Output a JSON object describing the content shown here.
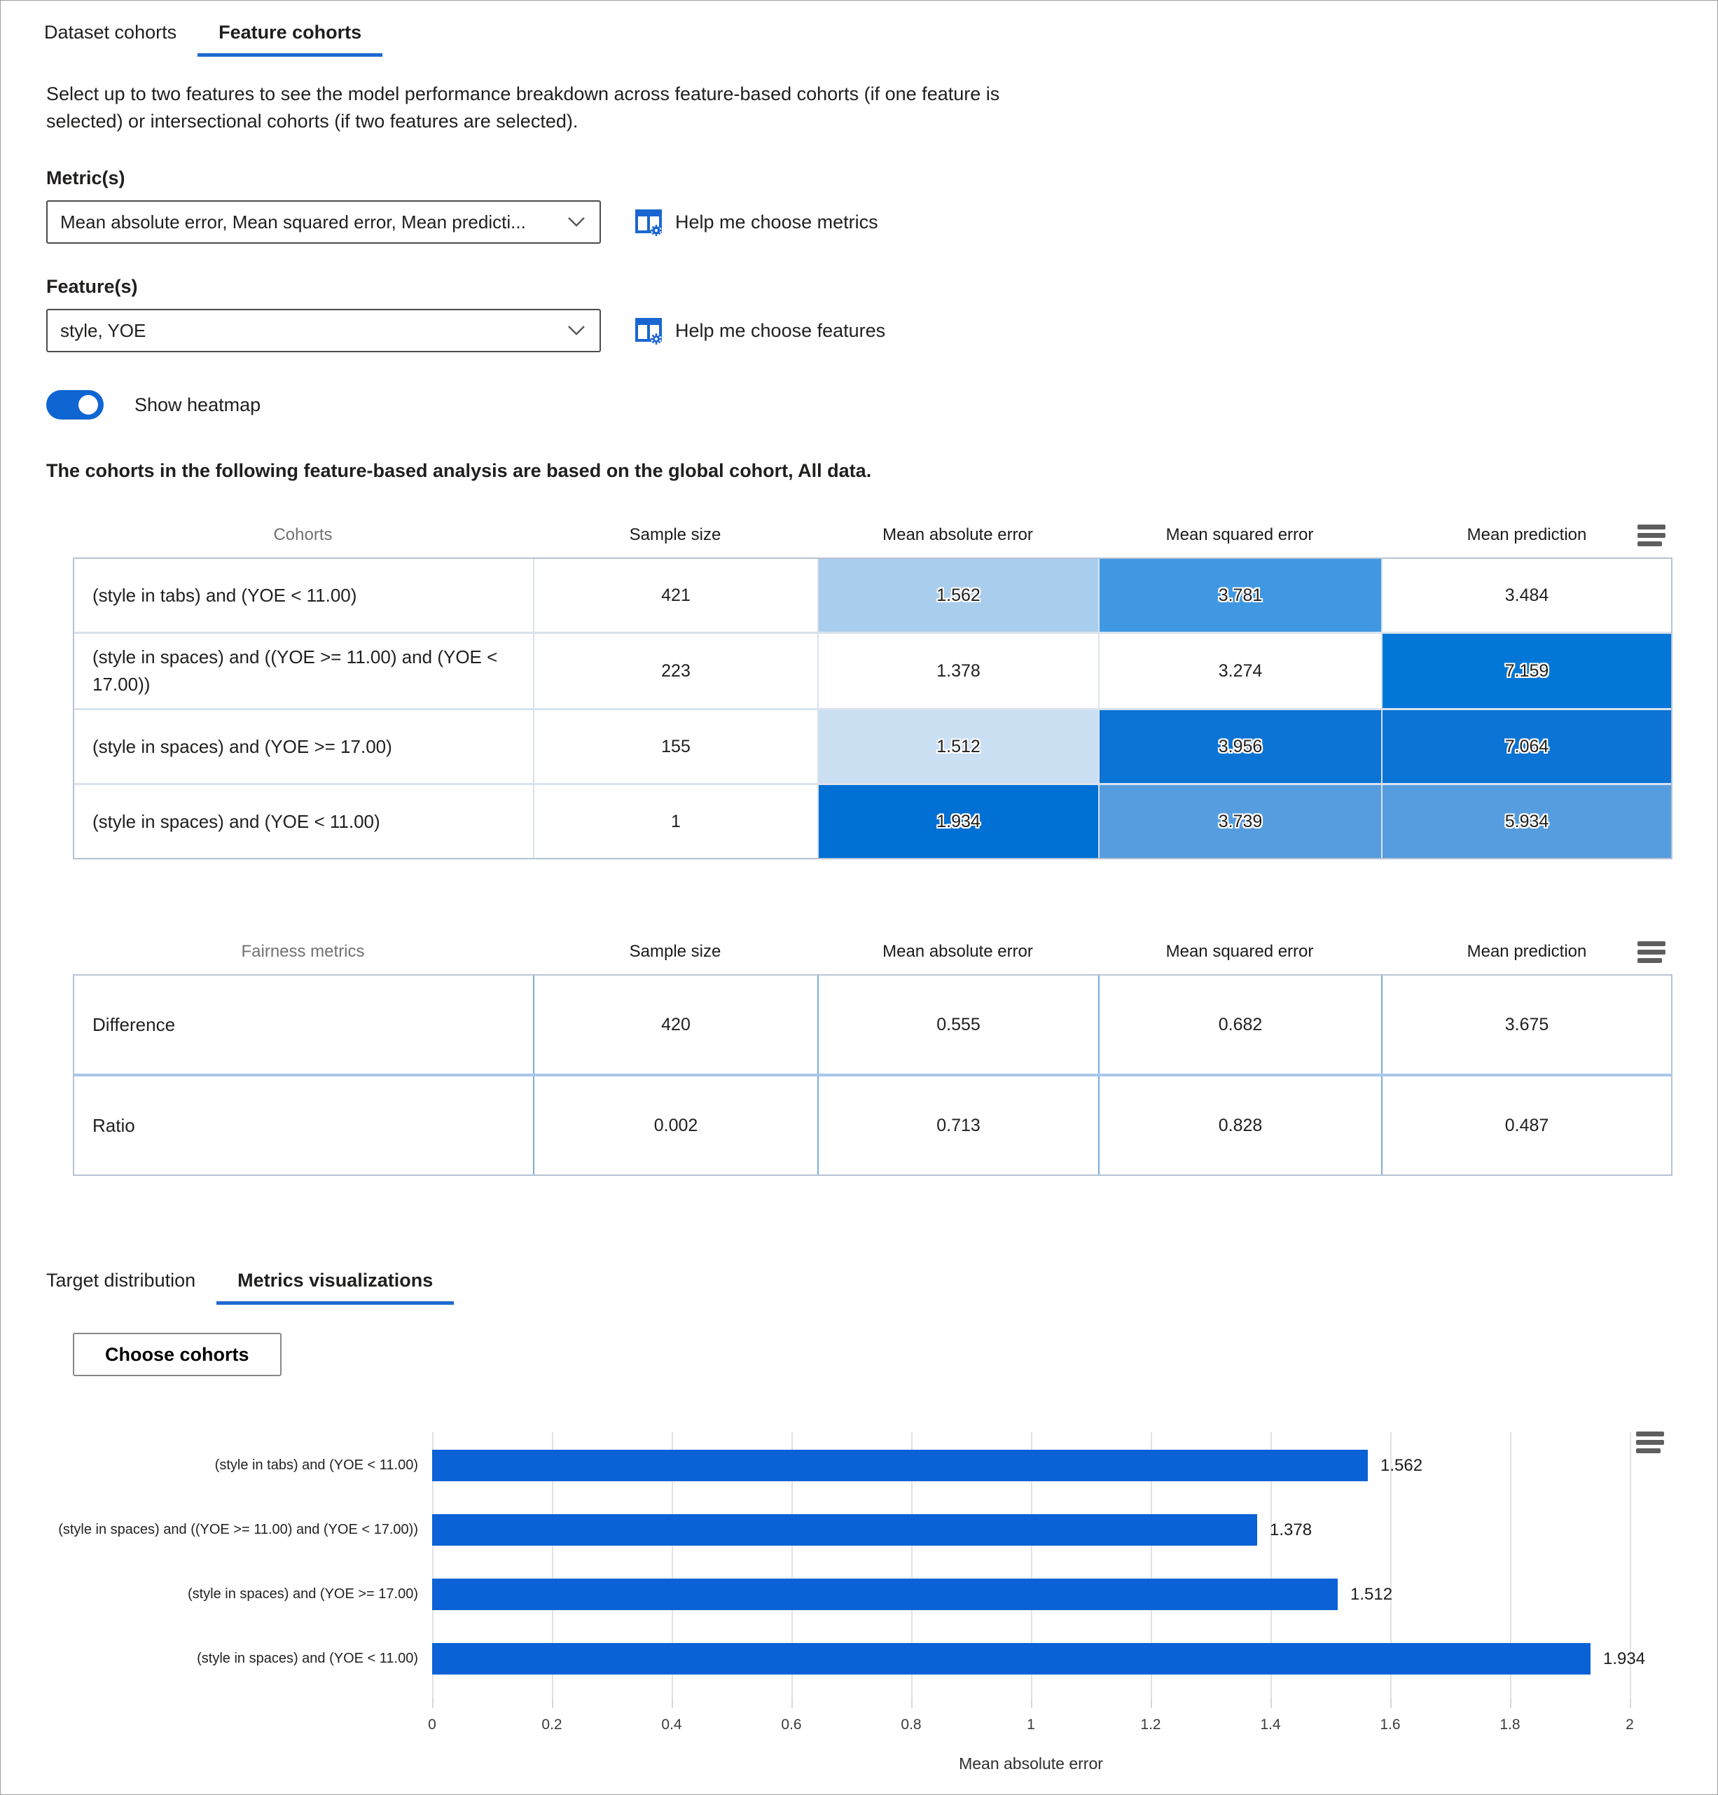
{
  "tabs": {
    "dataset": "Dataset cohorts",
    "feature": "Feature cohorts"
  },
  "description": "Select up to two features to see the model performance breakdown across feature-based cohorts (if one feature is selected) or intersectional cohorts (if two features are selected).",
  "metrics": {
    "label": "Metric(s)",
    "value": "Mean absolute error, Mean squared error, Mean predicti...",
    "help": "Help me choose metrics"
  },
  "features": {
    "label": "Feature(s)",
    "value": "style, YOE",
    "help": "Help me choose features"
  },
  "heatmap_toggle": {
    "label": "Show heatmap",
    "on": true
  },
  "note": "The cohorts in the following feature-based analysis are based on the global cohort, All data.",
  "cohort_table": {
    "headers": [
      "Cohorts",
      "Sample size",
      "Mean absolute error",
      "Mean squared error",
      "Mean prediction"
    ],
    "rows": [
      {
        "cohort": "(style in tabs) and (YOE < 11.00)",
        "sample_size": "421",
        "values": [
          "1.562",
          "3.781",
          "3.484"
        ],
        "colors": [
          "#a9cdec",
          "#4198e2",
          "#ffffff"
        ]
      },
      {
        "cohort": "(style in spaces) and ((YOE >= 11.00) and (YOE < 17.00))",
        "sample_size": "223",
        "values": [
          "1.378",
          "3.274",
          "7.159"
        ],
        "colors": [
          "#ffffff",
          "#ffffff",
          "#0277d7"
        ]
      },
      {
        "cohort": "(style in spaces) and (YOE >= 17.00)",
        "sample_size": "155",
        "values": [
          "1.512",
          "3.956",
          "7.064"
        ],
        "colors": [
          "#cbdff3",
          "#0c74d4",
          "#0c74d4"
        ]
      },
      {
        "cohort": "(style in spaces) and (YOE < 11.00)",
        "sample_size": "1",
        "values": [
          "1.934",
          "3.739",
          "5.934"
        ],
        "colors": [
          "#0170d4",
          "#559ddf",
          "#559ddf"
        ]
      }
    ]
  },
  "fairness_table": {
    "headers": [
      "Fairness metrics",
      "Sample size",
      "Mean absolute error",
      "Mean squared error",
      "Mean prediction"
    ],
    "rows": [
      {
        "label": "Difference",
        "values": [
          "420",
          "0.555",
          "0.682",
          "3.675"
        ]
      },
      {
        "label": "Ratio",
        "values": [
          "0.002",
          "0.713",
          "0.828",
          "0.487"
        ]
      }
    ]
  },
  "sub_tabs": {
    "target": "Target distribution",
    "metrics_viz": "Metrics visualizations"
  },
  "choose_cohorts_button": "Choose cohorts",
  "chart_data": {
    "type": "bar",
    "orientation": "horizontal",
    "title": "",
    "categories": [
      "(style in tabs) and (YOE < 11.00)",
      "(style in spaces) and ((YOE >= 11.00) and (YOE < 17.00))",
      "(style in spaces) and (YOE >= 17.00)",
      "(style in spaces) and (YOE < 11.00)"
    ],
    "values": [
      1.562,
      1.378,
      1.512,
      1.934
    ],
    "value_labels": [
      "1.562",
      "1.378",
      "1.512",
      "1.934"
    ],
    "xlabel": "Mean absolute error",
    "ylabel": "",
    "xlim": [
      0,
      2
    ],
    "x_tick_labels": [
      "0",
      "0.2",
      "0.4",
      "0.6",
      "0.8",
      "1",
      "1.2",
      "1.4",
      "1.6",
      "1.8",
      "2"
    ],
    "grid": true,
    "legend": "none",
    "bar_color": "#0b62d6"
  },
  "colors": {
    "accent_blue": "#0f65d2",
    "tab_underline": "#1e69d2",
    "icon_blue": "#1a66d1",
    "heat_dark": "#0170d4",
    "heat_mid": "#4198e2",
    "heat_light": "#a9cdec"
  }
}
